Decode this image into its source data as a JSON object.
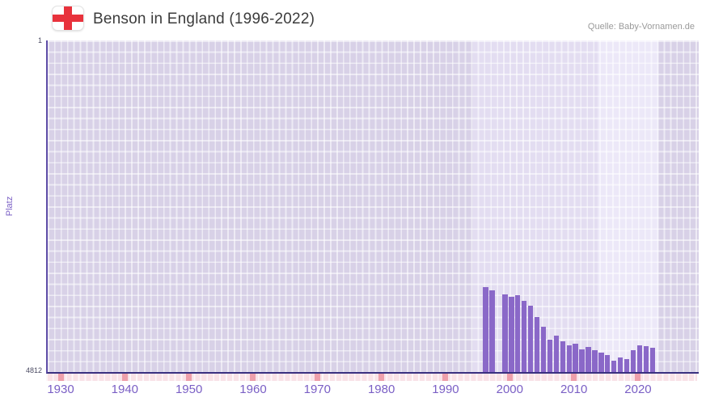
{
  "header": {
    "title": "Benson in England (1996-2022)",
    "source": "Quelle: Baby-Vornamen.de",
    "flag": "england-st-george-cross"
  },
  "chart_data": {
    "type": "bar",
    "title": "Benson in England (1996-2022)",
    "xlabel": "",
    "ylabel": "Platz",
    "y_axis": {
      "top_label": "1",
      "bottom_label": "4812",
      "min": 1,
      "max": 4812,
      "inverted": true
    },
    "x_axis": {
      "tick_years": [
        1930,
        1940,
        1950,
        1960,
        1970,
        1980,
        1990,
        2000,
        2010,
        2020
      ],
      "visible_range": [
        1928,
        2029
      ]
    },
    "years": [
      1996,
      1997,
      1998,
      1999,
      2000,
      2001,
      2002,
      2003,
      2004,
      2005,
      2006,
      2007,
      2008,
      2009,
      2010,
      2011,
      2012,
      2013,
      2014,
      2015,
      2016,
      2017,
      2018,
      2019,
      2020,
      2021,
      2022
    ],
    "values": [
      3580,
      3630,
      null,
      3690,
      3720,
      3700,
      3780,
      3850,
      4010,
      4150,
      4340,
      4280,
      4370,
      4430,
      4400,
      4480,
      4450,
      4490,
      4530,
      4570,
      4650,
      4600,
      4620,
      4500,
      4420,
      4440,
      4460
    ],
    "legend": [],
    "grid": true
  },
  "colors": {
    "bar": "#8a68c8",
    "plot_background": "#d8d1e7",
    "band_data_period": "#e3ddf1",
    "band_recent": "#ece8f8",
    "axis_line": "#3a3180",
    "x_label_text": "#7a5fc5",
    "tick_strip_background": "#f9e2e7",
    "tick_mark": "#ee9fab",
    "flag_cross": "#e8323c"
  }
}
